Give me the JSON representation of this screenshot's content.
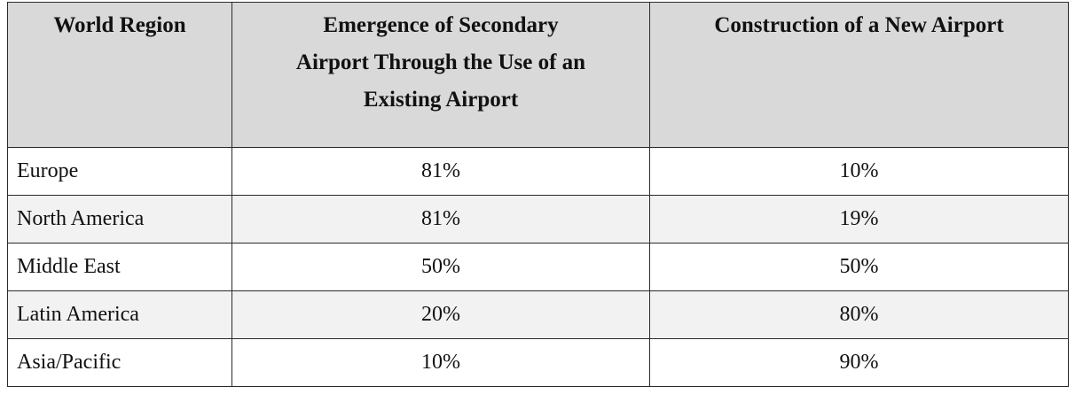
{
  "table": {
    "headers": [
      "World Region",
      "Emergence of Secondary Airport Through the Use of an Existing Airport",
      "Construction of a New Airport"
    ],
    "rows": [
      {
        "region": "Europe",
        "secondary": "81%",
        "new_airport": "10%"
      },
      {
        "region": "North America",
        "secondary": "81%",
        "new_airport": "19%"
      },
      {
        "region": "Middle East",
        "secondary": "50%",
        "new_airport": "50%"
      },
      {
        "region": "Latin America",
        "secondary": "20%",
        "new_airport": "80%"
      },
      {
        "region": "Asia/Pacific",
        "secondary": "10%",
        "new_airport": "90%"
      }
    ]
  }
}
